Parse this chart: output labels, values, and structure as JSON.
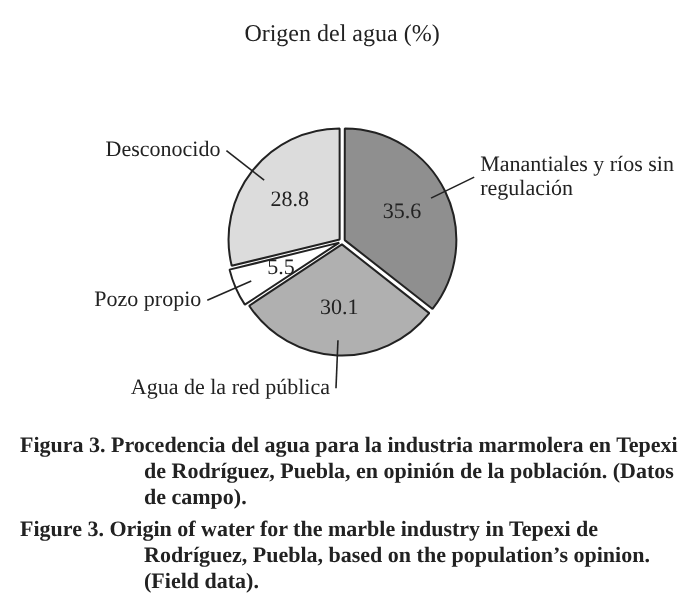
{
  "chart_data": {
    "type": "pie",
    "title": "Origen del agua (%)",
    "categories": [
      "Manantiales y ríos sin regulación",
      "Agua de la red pública",
      "Pozo propio",
      "Desconocido"
    ],
    "values": [
      35.6,
      30.1,
      5.5,
      28.8
    ],
    "colors": [
      "#8f8f8f",
      "#b0b0b0",
      "#ffffff",
      "#dcdcdc"
    ],
    "data_labels": true,
    "legend": false,
    "annotations": [
      "Figura 3. Procedencia del agua para la industria marmolera en Tepexi de Rodríguez, Puebla, en opinión de la población. (Datos de campo).",
      "Figure 3. Origin of water for the marble industry in Tepexi de Rodríguez, Puebla, based on the population’s opinion. (Field data)."
    ]
  }
}
